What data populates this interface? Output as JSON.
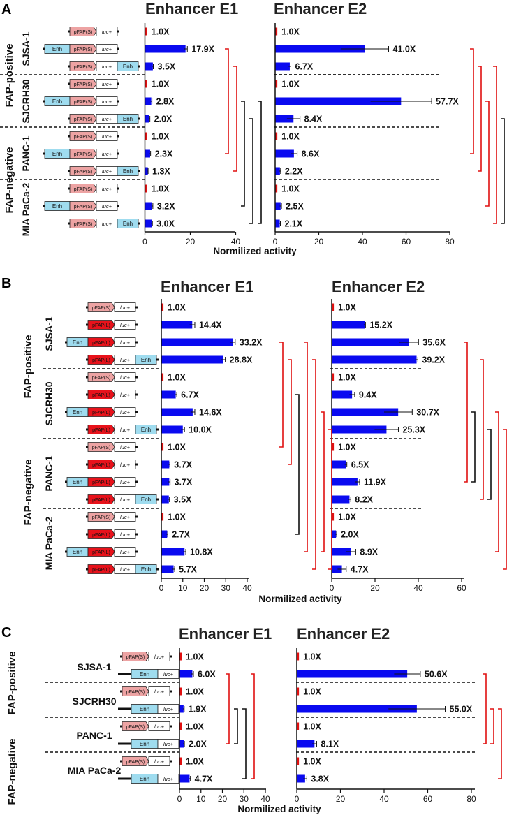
{
  "chart_data": [
    {
      "panel": "A",
      "type": "bar",
      "orientation": "horizontal",
      "xlabel": "Normilized activity",
      "group_labels": [
        "FAP-positive",
        "FAP-negative"
      ],
      "cell_lines": [
        "SJSA-1",
        "SJCRH30",
        "PANC-1",
        "MIA PaCa-2"
      ],
      "constructs": [
        "pFAP(S)-luc+",
        "Enh-pFAP(S)-luc+",
        "pFAP(S)-luc+-Enh"
      ],
      "construct_parts": {
        "promoter": "pFAP(S)",
        "reporter": "luc+",
        "enhancer": "Enh"
      },
      "charts": [
        {
          "title": "Enhancer E1",
          "xlim": [
            0,
            40
          ],
          "ticks": [
            0,
            20,
            40
          ],
          "values": [
            1.0,
            17.9,
            3.5,
            1.0,
            2.8,
            2.0,
            1.0,
            2.3,
            1.3,
            1.0,
            3.2,
            3.0
          ],
          "errors": [
            0,
            0.8,
            0.2,
            0,
            0.3,
            0.2,
            0,
            0.2,
            0.1,
            0,
            0.3,
            0.3
          ],
          "labels": [
            "1.0X",
            "17.9X",
            "3.5X",
            "1.0X",
            "2.8X",
            "2.0X",
            "1.0X",
            "2.3X",
            "1.3X",
            "1.0X",
            "3.2X",
            "3.0X"
          ]
        },
        {
          "title": "Enhancer E2",
          "xlim": [
            0,
            80
          ],
          "ticks": [
            0,
            20,
            40,
            60,
            80
          ],
          "values": [
            1.0,
            41.0,
            6.7,
            1.0,
            57.7,
            8.4,
            1.0,
            8.6,
            2.2,
            1.0,
            2.5,
            2.1
          ],
          "errors": [
            0,
            11,
            0.5,
            0,
            14,
            3,
            0,
            1.5,
            0.3,
            0,
            0.4,
            0.3
          ],
          "labels": [
            "1.0X",
            "41.0X",
            "6.7X",
            "1.0X",
            "57.7X",
            "8.4X",
            "1.0X",
            "8.6X",
            "2.2X",
            "1.0X",
            "2.5X",
            "2.1X"
          ]
        }
      ]
    },
    {
      "panel": "B",
      "type": "bar",
      "orientation": "horizontal",
      "xlabel": "Normilized activity",
      "group_labels": [
        "FAP-positive",
        "FAP-negative"
      ],
      "cell_lines": [
        "SJSA-1",
        "SJCRH30",
        "PANC-1",
        "MIA PaCa-2"
      ],
      "constructs": [
        "pFAP(S)-luc+",
        "pFAP(L)-luc+",
        "Enh-pFAP(L)-luc+",
        "pFAP(L)-luc+-Enh"
      ],
      "construct_parts": {
        "promoter_short": "pFAP(S)",
        "promoter_long": "pFAP(L)",
        "reporter": "luc+",
        "enhancer": "Enh"
      },
      "charts": [
        {
          "title": "Enhancer E1",
          "xlim": [
            0,
            40
          ],
          "ticks": [
            0,
            10,
            20,
            30,
            40
          ],
          "values": [
            1.0,
            14.4,
            33.2,
            28.8,
            1.0,
            6.7,
            14.6,
            10.0,
            1.0,
            3.7,
            3.7,
            3.5,
            1.0,
            2.7,
            10.8,
            5.7
          ],
          "errors": [
            0,
            1.2,
            1.2,
            1.0,
            0,
            0.5,
            1.0,
            0.8,
            0,
            0.3,
            0.4,
            0.3,
            0,
            0.3,
            0.6,
            0.5
          ],
          "labels": [
            "1.0X",
            "14.4X",
            "33.2X",
            "28.8X",
            "1.0X",
            "6.7X",
            "14.6X",
            "10.0X",
            "1.0X",
            "3.7X",
            "3.7X",
            "3.5X",
            "1.0X",
            "2.7X",
            "10.8X",
            "5.7X"
          ]
        },
        {
          "title": "Enhancer E2",
          "xlim": [
            0,
            60
          ],
          "ticks": [
            0,
            20,
            40,
            60
          ],
          "values": [
            1.0,
            15.2,
            35.6,
            39.2,
            1.0,
            9.4,
            30.7,
            25.3,
            1.0,
            6.5,
            11.9,
            8.2,
            1.0,
            2.0,
            8.9,
            4.7
          ],
          "errors": [
            0,
            0.4,
            4.5,
            0.6,
            0,
            1.2,
            6.5,
            5.5,
            0,
            0.5,
            1.0,
            0.6,
            0,
            0.3,
            2.2,
            2.0
          ],
          "labels": [
            "1.0X",
            "15.2X",
            "35.6X",
            "39.2X",
            "1.0X",
            "9.4X",
            "30.7X",
            "25.3X",
            "1.0X",
            "6.5X",
            "11.9X",
            "8.2X",
            "1.0X",
            "2.0X",
            "8.9X",
            "4.7X"
          ]
        }
      ]
    },
    {
      "panel": "C",
      "type": "bar",
      "orientation": "horizontal",
      "xlabel": "Normilized activity",
      "group_labels": [
        "FAP-positive",
        "FAP-negative"
      ],
      "cell_lines": [
        "SJSA-1",
        "SJCRH30",
        "PANC-1",
        "MIA PaCa-2"
      ],
      "constructs": [
        "pFAP(S)-luc+",
        "Enh-luc+"
      ],
      "construct_parts": {
        "promoter": "pFAP(S)",
        "reporter": "luc+",
        "enhancer": "Enh"
      },
      "charts": [
        {
          "title": "Enhancer E1",
          "xlim": [
            0,
            40
          ],
          "ticks": [
            0,
            10,
            20,
            30,
            40
          ],
          "values": [
            1.0,
            6.0,
            1.0,
            1.9,
            1.0,
            2.0,
            1.0,
            4.7
          ],
          "errors": [
            0,
            0.5,
            0,
            0.3,
            0,
            0.3,
            0,
            0.4
          ],
          "labels": [
            "1.0X",
            "6.0X",
            "1.0X",
            "1.9X",
            "1.0X",
            "2.0X",
            "1.0X",
            "4.7X"
          ]
        },
        {
          "title": "Enhancer E2",
          "xlim": [
            0,
            80
          ],
          "ticks": [
            0,
            20,
            40,
            60,
            80
          ],
          "values": [
            1.0,
            50.6,
            1.0,
            55.0,
            1.0,
            8.1,
            1.0,
            3.8
          ],
          "errors": [
            0,
            6,
            0,
            13,
            0,
            1.0,
            0,
            0.8
          ],
          "labels": [
            "1.0X",
            "50.6X",
            "1.0X",
            "55.0X",
            "1.0X",
            "8.1X",
            "1.0X",
            "3.8X"
          ]
        }
      ]
    }
  ],
  "colors": {
    "bar": "#0a0af0",
    "control_bar": "#e01010",
    "sig_bracket_red": "#e01010",
    "sig_bracket_black": "#111111",
    "enh_box": "#9fdcef",
    "pfaps_box": "#eda3a3",
    "pfapl_box": "#e8121b",
    "luc_box": "#ffffff"
  }
}
